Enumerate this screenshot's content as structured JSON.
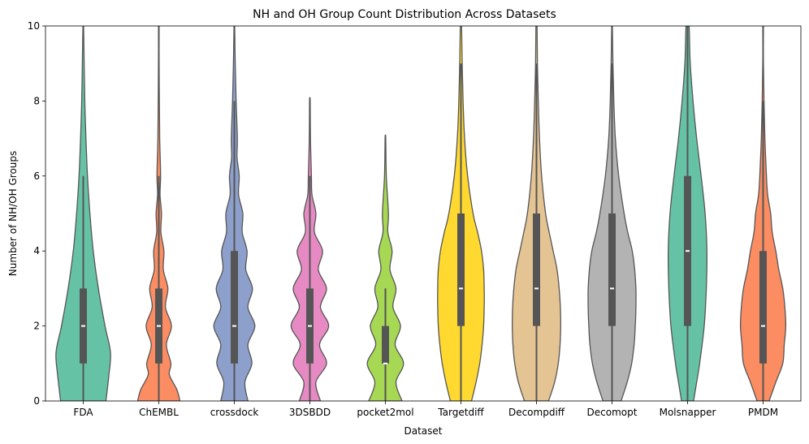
{
  "chart_data": {
    "type": "violin",
    "title": "NH and OH Group Count Distribution Across Datasets",
    "xlabel": "Dataset",
    "ylabel": "Number of NH/OH Groups",
    "ylim": [
      0,
      10
    ],
    "yticks": [
      0,
      2,
      4,
      6,
      8,
      10
    ],
    "grid": false,
    "legend": "none",
    "categories": [
      "FDA",
      "ChEMBL",
      "crossdock",
      "3DSBDD",
      "pocket2mol",
      "Targetdiff",
      "Decompdiff",
      "Decomopt",
      "Molsnapper",
      "PMDM"
    ],
    "colors": [
      "#66c2a5",
      "#fc8d62",
      "#8da0cb",
      "#e78ac3",
      "#a6d854",
      "#ffd92f",
      "#e5c494",
      "#b3b3b3",
      "#66c2a5",
      "#fc8d62"
    ],
    "box": [
      {
        "median": 2,
        "q1": 1,
        "q3": 3,
        "whisker_low": 0,
        "whisker_high": 6
      },
      {
        "median": 2,
        "q1": 1,
        "q3": 3,
        "whisker_low": 0,
        "whisker_high": 6
      },
      {
        "median": 2,
        "q1": 1,
        "q3": 4,
        "whisker_low": 0,
        "whisker_high": 8
      },
      {
        "median": 2,
        "q1": 1,
        "q3": 3,
        "whisker_low": 0,
        "whisker_high": 6
      },
      {
        "median": 1,
        "q1": 1,
        "q3": 2,
        "whisker_low": 0,
        "whisker_high": 3
      },
      {
        "median": 3,
        "q1": 2,
        "q3": 5,
        "whisker_low": 0,
        "whisker_high": 9
      },
      {
        "median": 3,
        "q1": 2,
        "q3": 5,
        "whisker_low": 0,
        "whisker_high": 9
      },
      {
        "median": 3,
        "q1": 2,
        "q3": 5,
        "whisker_low": 0,
        "whisker_high": 9
      },
      {
        "median": 4,
        "q1": 2,
        "q3": 6,
        "whisker_low": 0,
        "whisker_high": 10
      },
      {
        "median": 2,
        "q1": 1,
        "q3": 4,
        "whisker_low": 0,
        "whisker_high": 8
      }
    ],
    "density": [
      {
        "y": [
          0,
          0.7,
          1.3,
          2,
          3,
          4,
          5,
          6,
          7,
          8,
          9,
          10
        ],
        "w": [
          0.75,
          0.85,
          0.9,
          0.72,
          0.5,
          0.33,
          0.22,
          0.14,
          0.09,
          0.05,
          0.03,
          0.01
        ]
      },
      {
        "y": [
          0,
          0.3,
          0.7,
          1,
          1.5,
          2,
          2.5,
          3,
          3.5,
          4,
          4.5,
          5,
          5.5,
          6,
          7,
          8,
          9,
          10
        ],
        "w": [
          0.7,
          0.6,
          0.35,
          0.4,
          0.25,
          0.42,
          0.22,
          0.3,
          0.15,
          0.17,
          0.07,
          0.09,
          0.04,
          0.06,
          0.03,
          0.02,
          0.01,
          0.01
        ]
      },
      {
        "y": [
          0,
          0.5,
          1,
          1.5,
          2,
          2.5,
          3,
          3.5,
          4,
          4.5,
          5,
          5.5,
          6,
          6.5,
          7,
          8,
          9,
          10
        ],
        "w": [
          0.45,
          0.35,
          0.58,
          0.45,
          0.68,
          0.45,
          0.6,
          0.38,
          0.42,
          0.26,
          0.28,
          0.14,
          0.16,
          0.09,
          0.1,
          0.06,
          0.03,
          0.01
        ]
      },
      {
        "y": [
          0,
          0.5,
          1,
          1.5,
          2,
          2.5,
          3,
          3.5,
          4,
          4.5,
          5,
          5.5,
          6,
          7,
          8
        ],
        "w": [
          0.35,
          0.2,
          0.55,
          0.32,
          0.62,
          0.35,
          0.55,
          0.28,
          0.42,
          0.15,
          0.2,
          0.07,
          0.05,
          0.02,
          0.01
        ]
      },
      {
        "y": [
          0,
          0.5,
          1,
          1.5,
          2,
          2.5,
          3,
          3.5,
          4,
          4.5,
          5,
          6,
          7
        ],
        "w": [
          0.55,
          0.35,
          0.6,
          0.32,
          0.5,
          0.25,
          0.35,
          0.15,
          0.22,
          0.08,
          0.1,
          0.03,
          0.01
        ]
      },
      {
        "y": [
          0,
          0.5,
          1,
          1.5,
          2,
          2.5,
          3,
          3.5,
          4,
          4.5,
          5,
          6,
          7,
          8,
          9,
          10
        ],
        "w": [
          0.35,
          0.5,
          0.62,
          0.7,
          0.75,
          0.77,
          0.77,
          0.75,
          0.68,
          0.55,
          0.4,
          0.22,
          0.12,
          0.07,
          0.04,
          0.02
        ]
      },
      {
        "y": [
          0,
          0.5,
          1,
          1.5,
          2,
          2.5,
          3,
          3.5,
          4,
          4.5,
          5,
          6,
          7,
          8,
          9,
          10
        ],
        "w": [
          0.4,
          0.6,
          0.72,
          0.78,
          0.8,
          0.79,
          0.75,
          0.68,
          0.55,
          0.42,
          0.3,
          0.17,
          0.1,
          0.06,
          0.03,
          0.02
        ]
      },
      {
        "y": [
          0,
          0.5,
          1,
          1.5,
          2,
          2.5,
          3,
          3.5,
          4,
          4.5,
          5,
          6,
          7,
          8,
          9,
          10
        ],
        "w": [
          0.3,
          0.5,
          0.65,
          0.73,
          0.77,
          0.79,
          0.79,
          0.75,
          0.67,
          0.52,
          0.4,
          0.22,
          0.11,
          0.06,
          0.03,
          0.01
        ]
      },
      {
        "y": [
          0,
          0.5,
          1,
          2,
          3,
          4,
          5,
          6,
          7,
          8,
          9,
          10
        ],
        "w": [
          0.2,
          0.3,
          0.4,
          0.55,
          0.62,
          0.64,
          0.58,
          0.45,
          0.3,
          0.18,
          0.09,
          0.05
        ]
      },
      {
        "y": [
          0,
          0.5,
          1,
          1.5,
          2,
          2.5,
          3,
          3.5,
          4,
          4.5,
          5,
          5.5,
          6,
          7,
          8,
          9,
          10
        ],
        "w": [
          0.2,
          0.42,
          0.65,
          0.7,
          0.75,
          0.72,
          0.65,
          0.52,
          0.42,
          0.3,
          0.25,
          0.15,
          0.11,
          0.06,
          0.03,
          0.01,
          0.01
        ]
      }
    ]
  }
}
